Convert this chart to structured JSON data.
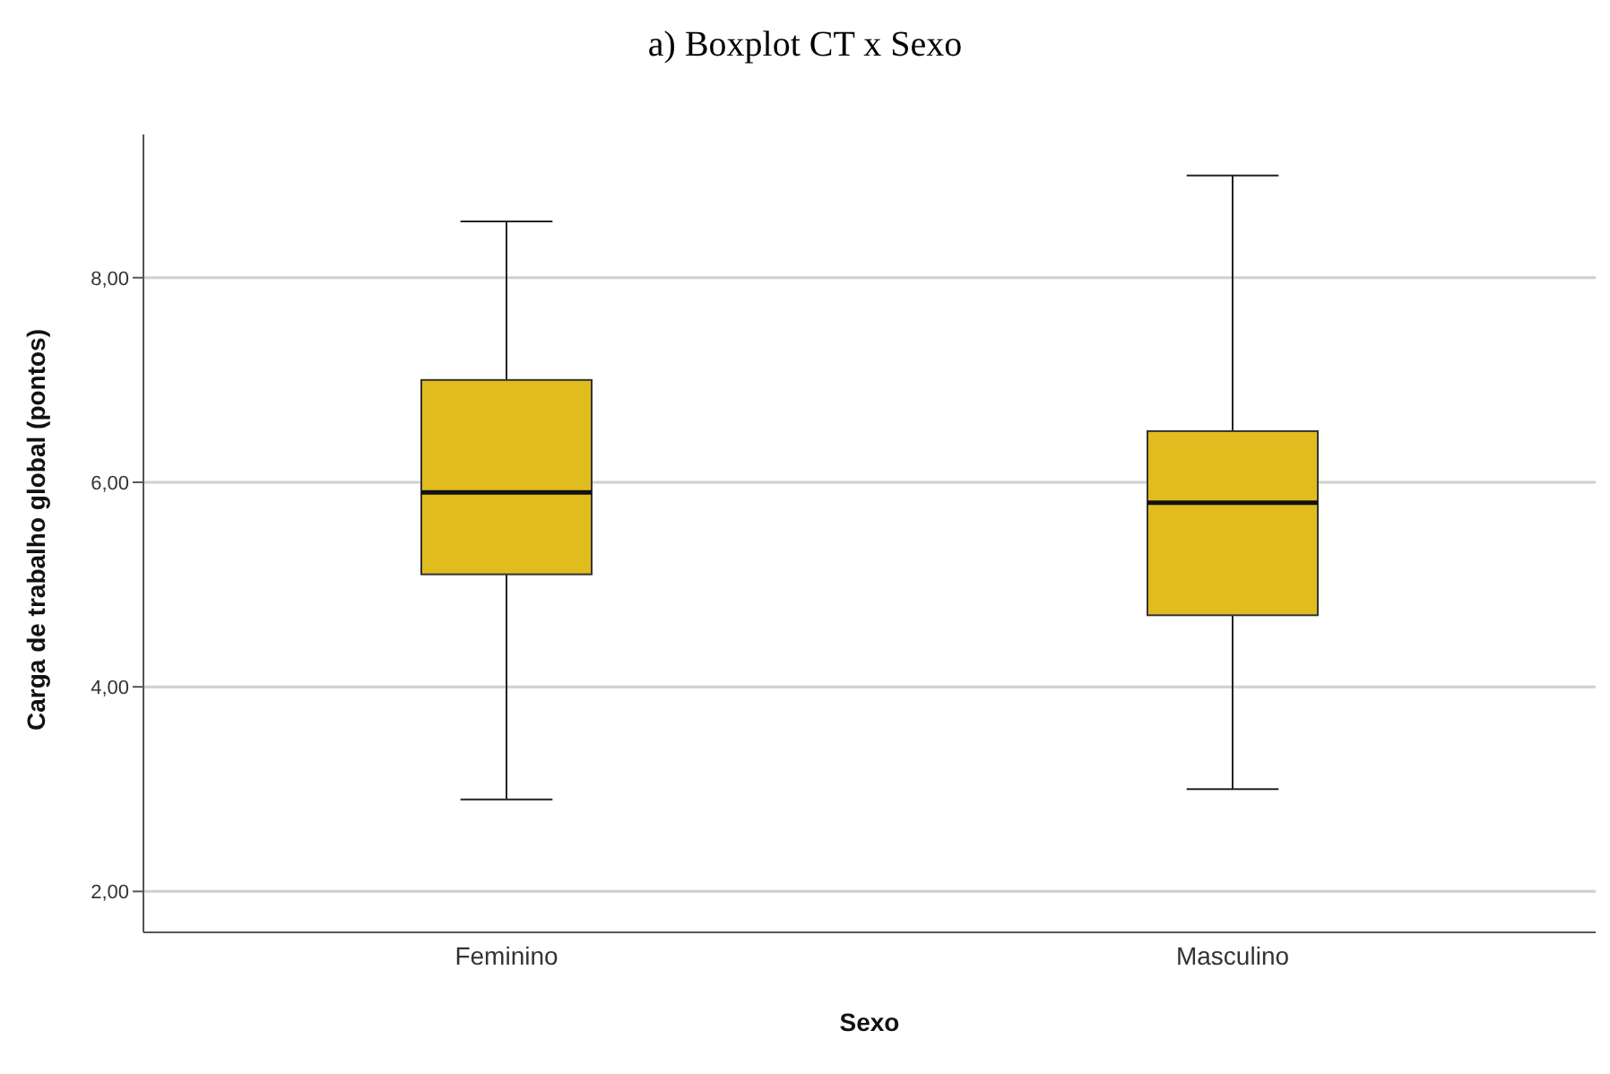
{
  "chart_data": {
    "type": "box",
    "title": "a) Boxplot CT x Sexo",
    "xlabel": "Sexo",
    "ylabel": "Carga de trabalho global (pontos)",
    "categories": [
      "Feminino",
      "Masculino"
    ],
    "boxes": [
      {
        "low": 2.9,
        "q1": 5.1,
        "median": 5.9,
        "q3": 7.0,
        "high": 8.55
      },
      {
        "low": 3.0,
        "q1": 4.7,
        "median": 5.8,
        "q3": 6.5,
        "high": 9.0
      }
    ],
    "color": "#e1bc1f",
    "ylim": [
      1.6,
      9.4
    ],
    "yticks": [
      {
        "value": 2,
        "label": "2,00"
      },
      {
        "value": 4,
        "label": "4,00"
      },
      {
        "value": 6,
        "label": "6,00"
      },
      {
        "value": 8,
        "label": "8,00"
      }
    ],
    "grid": "y"
  }
}
